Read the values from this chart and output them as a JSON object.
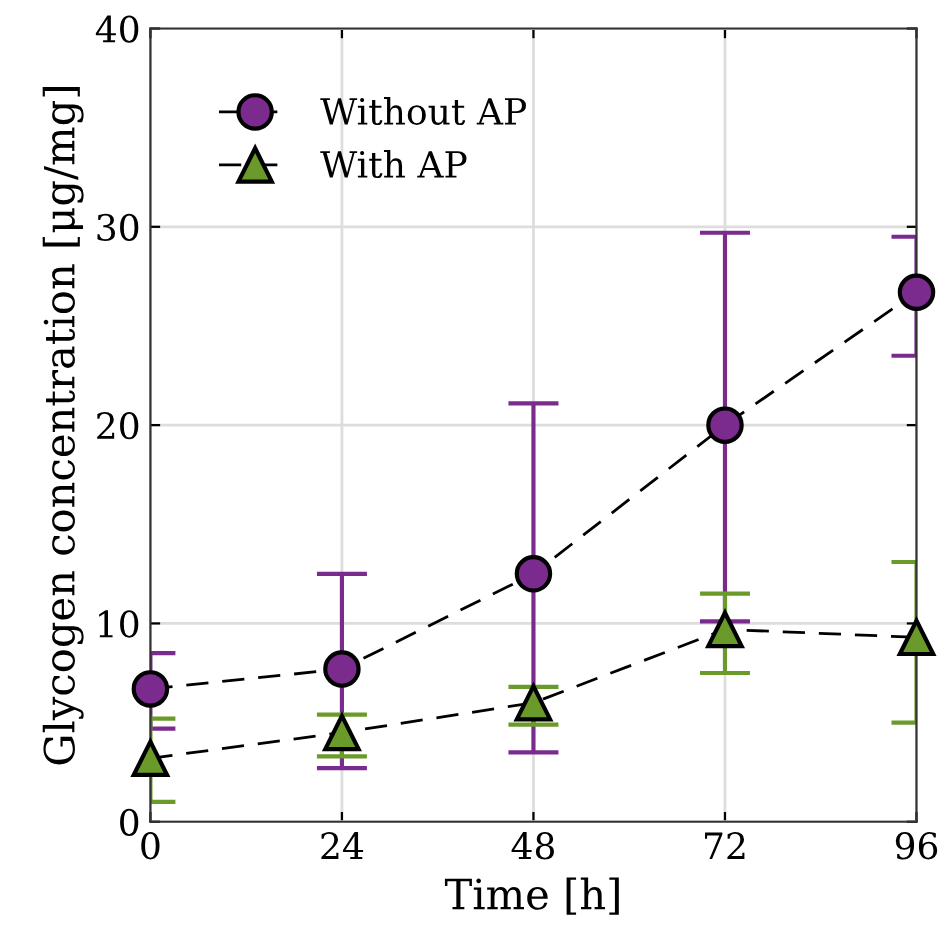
{
  "chart_data": {
    "type": "line",
    "xlabel": "Time [h]",
    "ylabel": "Glycogen concentration [μg/mg]",
    "x": [
      0,
      24,
      48,
      72,
      96
    ],
    "series": [
      {
        "name": "Without AP",
        "color": "#7b2a8e",
        "marker": "circle",
        "values": [
          6.7,
          7.7,
          12.5,
          20.0,
          26.7
        ],
        "errors": [
          [
            4.7,
            8.5
          ],
          [
            2.7,
            12.5
          ],
          [
            3.5,
            21.1
          ],
          [
            10.1,
            29.7
          ],
          [
            23.5,
            29.5
          ]
        ]
      },
      {
        "name": "With AP",
        "color": "#6a9a2a",
        "marker": "triangle",
        "values": [
          3.2,
          4.5,
          6.0,
          9.7,
          9.3
        ],
        "errors": [
          [
            1.0,
            5.2
          ],
          [
            3.3,
            5.4
          ],
          [
            4.9,
            6.8
          ],
          [
            7.5,
            11.5
          ],
          [
            5.0,
            13.1
          ]
        ]
      }
    ],
    "xlim": [
      0,
      96
    ],
    "xticks": [
      0,
      24,
      48,
      72,
      96
    ],
    "ylim": [
      0,
      40
    ],
    "yticks": [
      0,
      10,
      20,
      30,
      40
    ],
    "grid": true,
    "legend": "top left",
    "line_style": "dashed"
  }
}
